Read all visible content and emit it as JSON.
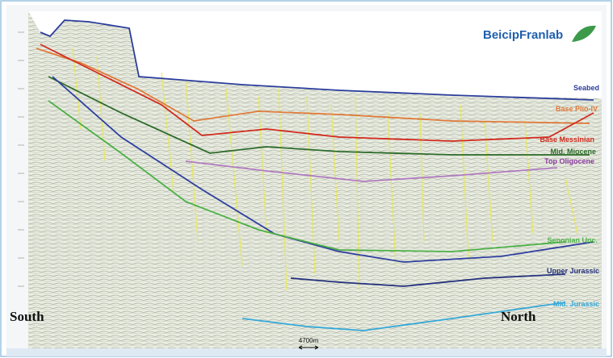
{
  "logo": "BeicipFranlab",
  "horizons": [
    {
      "label": "Seabed"
    },
    {
      "label": "Base Plio-IV"
    },
    {
      "label": "Base Messinian"
    },
    {
      "label": "Mid. Miocene"
    },
    {
      "label": "Top Oligocene"
    },
    {
      "label": "Senonian Unc."
    },
    {
      "label": "Upper Jurassic"
    },
    {
      "label": "Mid. Jurassic"
    }
  ],
  "directions": {
    "left": "South",
    "right": "North"
  },
  "scale_bar": "4700m"
}
